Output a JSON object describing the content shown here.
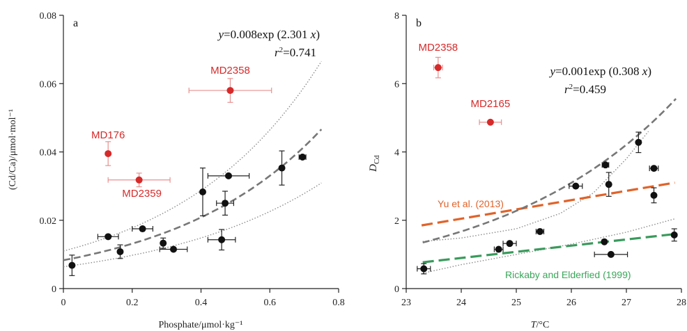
{
  "colors": {
    "black_point": "#111111",
    "red_point": "#d62a2a",
    "red_errorbar": "#e8908f",
    "fit_line": "#777777",
    "ci_line": "#8c8c8c",
    "yu_line": "#e0632a",
    "rickaby_line": "#3a9a5c",
    "yu_text": "#e0632a",
    "rickaby_text": "#3aa65a"
  },
  "chart_data": [
    {
      "panel": "a",
      "type": "scatter",
      "xlabel": "Phosphate/μmol·kg⁻¹",
      "ylabel": "(Cd/Ca)/μmol·mol⁻¹",
      "xlim": [
        0,
        0.8
      ],
      "ylim": [
        0,
        0.08
      ],
      "xticks": [
        0,
        0.2,
        0.4,
        0.6,
        0.8
      ],
      "yticks": [
        0,
        0.02,
        0.04,
        0.06,
        0.08
      ],
      "xtick_labels": [
        "0",
        "0.2",
        "0.4",
        "0.6",
        "0.8"
      ],
      "ytick_labels": [
        "0",
        "0.02",
        "0.04",
        "0.06",
        "0.08"
      ],
      "grid": false,
      "equation": {
        "y_part": "y",
        "eq_part": "=0.008exp (2.301 ",
        "x_part": "x",
        "close_part": ")"
      },
      "r2": {
        "r_part": "r",
        "sup_part": "2",
        "val_part": "=0.741"
      },
      "fit": {
        "a": 0.0083,
        "b": 2.301,
        "x_range": [
          0,
          0.75
        ]
      },
      "ci_upper": {
        "a": 0.011,
        "b": 2.4,
        "x_range": [
          0,
          0.75
        ]
      },
      "ci_lower": {
        "a": 0.0064,
        "b": 2.1,
        "x_range": [
          0,
          0.75
        ]
      },
      "points": [
        {
          "x": 0.025,
          "y": 0.0068,
          "xerr": 0,
          "yerr": 0.003
        },
        {
          "x": 0.13,
          "y": 0.0152,
          "xerr": 0.03,
          "yerr": 0
        },
        {
          "x": 0.165,
          "y": 0.0108,
          "xerr": 0,
          "yerr": 0.002
        },
        {
          "x": 0.23,
          "y": 0.0175,
          "xerr": 0.03,
          "yerr": 0
        },
        {
          "x": 0.29,
          "y": 0.0133,
          "xerr": 0,
          "yerr": 0.0015
        },
        {
          "x": 0.32,
          "y": 0.0115,
          "xerr": 0.04,
          "yerr": 0
        },
        {
          "x": 0.405,
          "y": 0.0283,
          "xerr": 0,
          "yerr": 0.007
        },
        {
          "x": 0.46,
          "y": 0.0143,
          "xerr": 0.04,
          "yerr": 0.003
        },
        {
          "x": 0.47,
          "y": 0.025,
          "xerr": 0.025,
          "yerr": 0.0035
        },
        {
          "x": 0.48,
          "y": 0.033,
          "xerr": 0.06,
          "yerr": 0
        },
        {
          "x": 0.635,
          "y": 0.0353,
          "xerr": 0,
          "yerr": 0.005
        },
        {
          "x": 0.695,
          "y": 0.0385,
          "xerr": 0.01,
          "yerr": 0
        }
      ],
      "outliers": [
        {
          "label": "MD2358",
          "x": 0.485,
          "y": 0.058,
          "xerr": 0.12,
          "yerr": 0.0035,
          "label_dx": 0,
          "label_dy": -24,
          "anchor": "middle"
        },
        {
          "label": "MD176",
          "x": 0.13,
          "y": 0.0395,
          "xerr": 0,
          "yerr": 0.0035,
          "label_dx": 0,
          "label_dy": -22,
          "anchor": "middle"
        },
        {
          "label": "MD2359",
          "x": 0.22,
          "y": 0.0318,
          "xerr": 0.09,
          "yerr": 0.002,
          "label_dx": 4,
          "label_dy": 24,
          "anchor": "middle"
        }
      ]
    },
    {
      "panel": "b",
      "type": "scatter",
      "xlabel_main": "T",
      "xlabel_unit": "/°C",
      "ylabel_main": "D",
      "ylabel_sub": "Cd",
      "xlim": [
        23,
        28
      ],
      "ylim": [
        0,
        8
      ],
      "xticks": [
        23,
        24,
        25,
        26,
        27,
        28
      ],
      "yticks": [
        0,
        2,
        4,
        6,
        8
      ],
      "xtick_labels": [
        "23",
        "24",
        "25",
        "26",
        "27",
        "28"
      ],
      "ytick_labels": [
        "0",
        "2",
        "4",
        "6",
        "8"
      ],
      "grid": false,
      "equation": {
        "y_part": "y",
        "eq_part": "=0.001exp (0.308 ",
        "x_part": "x",
        "close_part": ")"
      },
      "r2": {
        "r_part": "r",
        "sup_part": "2",
        "val_part": "=0.459"
      },
      "fit": {
        "a": 0.00103,
        "b": 0.308,
        "x_range": [
          23.3,
          27.9
        ]
      },
      "ci_upper_pts": [
        [
          23.3,
          1.38
        ],
        [
          24.0,
          1.48
        ],
        [
          25.0,
          1.75
        ],
        [
          25.8,
          2.2
        ],
        [
          26.4,
          2.8
        ],
        [
          27.0,
          3.8
        ],
        [
          27.4,
          4.6
        ]
      ],
      "ci_lower_pts": [
        [
          23.3,
          0.45
        ],
        [
          24.0,
          0.7
        ],
        [
          25.0,
          1.0
        ],
        [
          26.0,
          1.3
        ],
        [
          27.0,
          1.65
        ],
        [
          27.9,
          2.05
        ]
      ],
      "points": [
        {
          "x": 23.32,
          "y": 0.58,
          "xerr": 0.12,
          "yerr": 0.15
        },
        {
          "x": 24.68,
          "y": 1.15,
          "xerr": 0.08,
          "yerr": 0
        },
        {
          "x": 24.88,
          "y": 1.32,
          "xerr": 0.12,
          "yerr": 0
        },
        {
          "x": 25.43,
          "y": 1.67,
          "xerr": 0.07,
          "yerr": 0
        },
        {
          "x": 26.08,
          "y": 3.0,
          "xerr": 0.12,
          "yerr": 0
        },
        {
          "x": 26.6,
          "y": 1.37,
          "xerr": 0
        },
        {
          "x": 26.62,
          "y": 3.62,
          "xerr": 0.06,
          "yerr": 0
        },
        {
          "x": 26.68,
          "y": 3.05,
          "xerr": 0,
          "yerr": 0.35
        },
        {
          "x": 26.72,
          "y": 1.0,
          "xerr": 0.3,
          "yerr": 0
        },
        {
          "x": 27.22,
          "y": 4.28,
          "xerr": 0,
          "yerr": 0.3
        },
        {
          "x": 27.5,
          "y": 3.52,
          "xerr": 0.08,
          "yerr": 0
        },
        {
          "x": 27.5,
          "y": 2.73,
          "xerr": 0,
          "yerr": 0.22
        },
        {
          "x": 27.87,
          "y": 1.57,
          "xerr": 0,
          "yerr": 0.18
        }
      ],
      "outliers": [
        {
          "label": "MD2358",
          "x": 23.58,
          "y": 6.47,
          "xerr": 0.08,
          "yerr": 0.3,
          "label_dx": 0,
          "label_dy": -24,
          "anchor": "middle"
        },
        {
          "label": "MD2165",
          "x": 24.53,
          "y": 4.87,
          "xerr": 0.2,
          "yerr": 0,
          "label_dx": 0,
          "label_dy": -22,
          "anchor": "middle"
        }
      ],
      "reference_lines": [
        {
          "name": "Yu et al. (2013)",
          "from": [
            23.28,
            1.85
          ],
          "to": [
            27.88,
            3.1
          ]
        },
        {
          "name": "Rickaby and Elderfied (1999)",
          "from": [
            23.3,
            0.77
          ],
          "to": [
            27.9,
            1.6
          ]
        }
      ]
    }
  ]
}
